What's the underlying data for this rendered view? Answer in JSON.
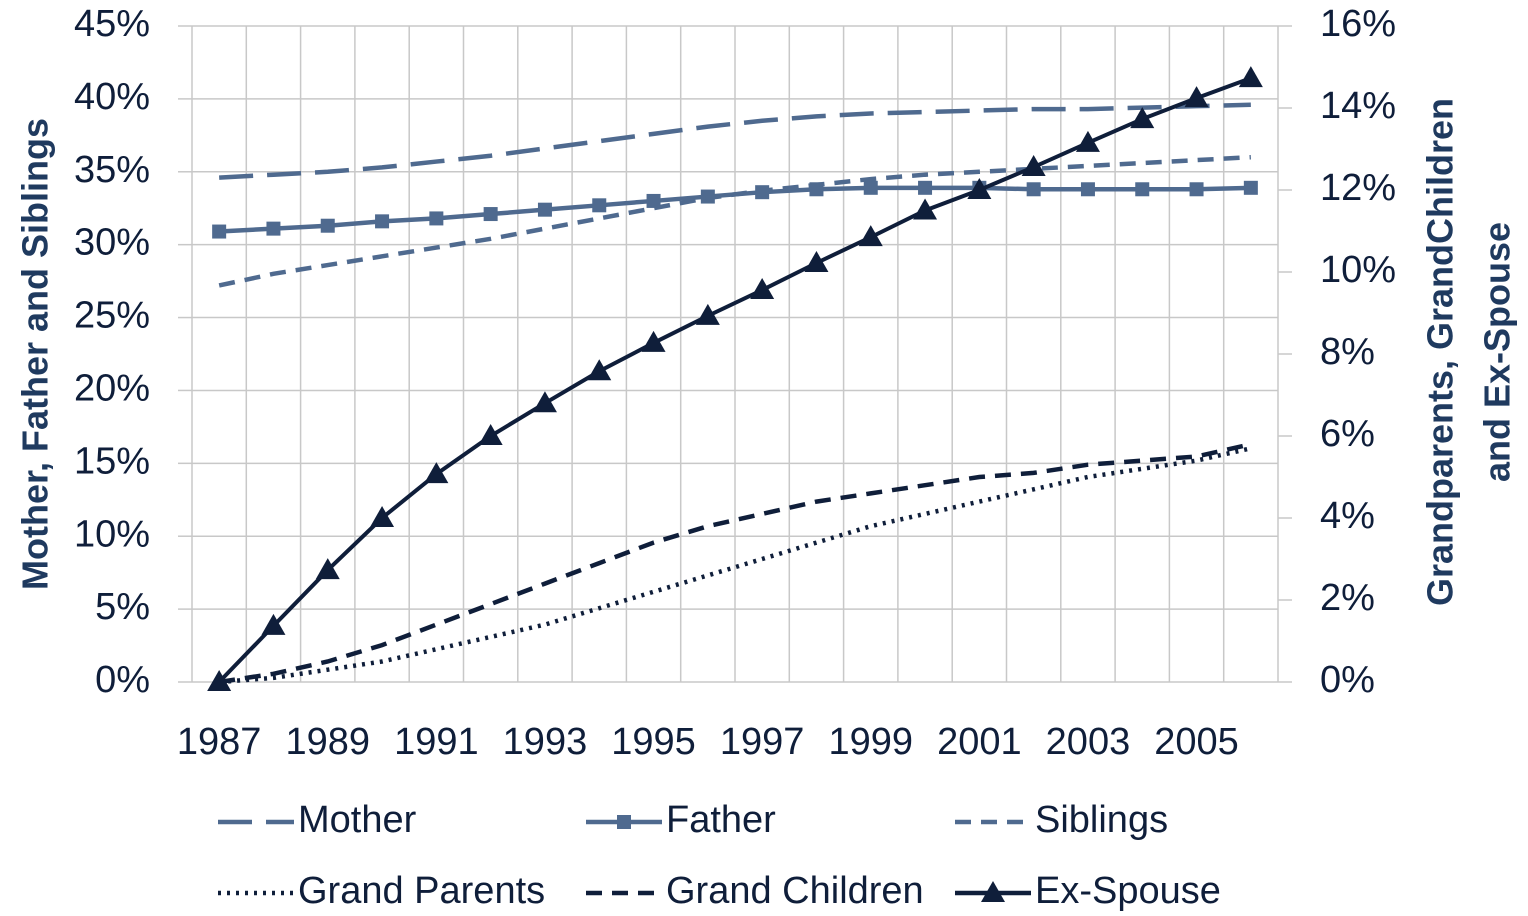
{
  "chart_data": {
    "type": "line",
    "categories": [
      "1987",
      null,
      "1989",
      null,
      "1991",
      null,
      "1993",
      null,
      "1995",
      null,
      "1997",
      null,
      "1999",
      null,
      "2001",
      null,
      "2003",
      null,
      "2005",
      null
    ],
    "ylabel": "Mother, Father and Siblings",
    "y2label": [
      "Grandparents, GrandChildren",
      "and Ex-Spouse"
    ],
    "ylim": [
      0,
      45
    ],
    "yticks": [
      {
        "value": 0,
        "label": "0%"
      },
      {
        "value": 5,
        "label": "5%"
      },
      {
        "value": 10,
        "label": "10%"
      },
      {
        "value": 15,
        "label": "15%"
      },
      {
        "value": 20,
        "label": "20%"
      },
      {
        "value": 25,
        "label": "25%"
      },
      {
        "value": 30,
        "label": "30%"
      },
      {
        "value": 35,
        "label": "35%"
      },
      {
        "value": 40,
        "label": "40%"
      },
      {
        "value": 45,
        "label": "45%"
      }
    ],
    "y2lim": [
      0,
      16
    ],
    "y2ticks": [
      {
        "value": 0,
        "label": "0%"
      },
      {
        "value": 2,
        "label": "2%"
      },
      {
        "value": 4,
        "label": "4%"
      },
      {
        "value": 6,
        "label": "6%"
      },
      {
        "value": 8,
        "label": "8%"
      },
      {
        "value": 10,
        "label": "10%"
      },
      {
        "value": 12,
        "label": "12%"
      },
      {
        "value": 14,
        "label": "14%"
      },
      {
        "value": 16,
        "label": "16%"
      }
    ],
    "grid": true,
    "legend": "bottom",
    "series": [
      {
        "name": "Mother",
        "color": "#4f6a8f",
        "dash": "long-dash",
        "marker": "none",
        "axis": "y",
        "values": [
          34.6,
          34.8,
          35.0,
          35.3,
          35.7,
          36.1,
          36.6,
          37.1,
          37.6,
          38.1,
          38.5,
          38.8,
          39.0,
          39.1,
          39.2,
          39.3,
          39.3,
          39.4,
          39.5,
          39.6
        ]
      },
      {
        "name": "Father",
        "color": "#4f6a8f",
        "dash": "solid",
        "marker": "square",
        "axis": "y",
        "values": [
          30.9,
          31.1,
          31.3,
          31.6,
          31.8,
          32.1,
          32.4,
          32.7,
          33.0,
          33.3,
          33.6,
          33.8,
          33.9,
          33.9,
          33.9,
          33.8,
          33.8,
          33.8,
          33.8,
          33.9
        ]
      },
      {
        "name": "Siblings",
        "color": "#4f6a8f",
        "dash": "dash",
        "marker": "none",
        "axis": "y",
        "values": [
          27.2,
          28.0,
          28.6,
          29.2,
          29.8,
          30.4,
          31.1,
          31.8,
          32.5,
          33.2,
          33.7,
          34.1,
          34.5,
          34.8,
          35.0,
          35.2,
          35.4,
          35.6,
          35.8,
          36.0
        ]
      },
      {
        "name": "Grand Parents",
        "color": "#0f1e3a",
        "dash": "dot",
        "marker": "none",
        "axis": "y2",
        "values": [
          0,
          0.1,
          0.3,
          0.5,
          0.8,
          1.1,
          1.4,
          1.8,
          2.2,
          2.6,
          3.0,
          3.4,
          3.8,
          4.1,
          4.4,
          4.7,
          5.0,
          5.2,
          5.4,
          5.7
        ]
      },
      {
        "name": "Grand Children",
        "color": "#0f1e3a",
        "dash": "dash",
        "marker": "none",
        "axis": "y2",
        "values": [
          0,
          0.2,
          0.5,
          0.9,
          1.4,
          1.9,
          2.4,
          2.9,
          3.4,
          3.8,
          4.1,
          4.4,
          4.6,
          4.8,
          5.0,
          5.1,
          5.3,
          5.4,
          5.5,
          5.8
        ]
      },
      {
        "name": "Ex-Spouse",
        "color": "#0f1e3a",
        "dash": "solid",
        "marker": "triangle",
        "axis": "y2",
        "values": [
          0,
          1.37,
          2.73,
          4.0,
          5.07,
          6.0,
          6.8,
          7.58,
          8.27,
          8.93,
          9.56,
          10.22,
          10.85,
          11.5,
          12.0,
          12.56,
          13.15,
          13.73,
          14.24,
          14.73
        ]
      }
    ]
  }
}
